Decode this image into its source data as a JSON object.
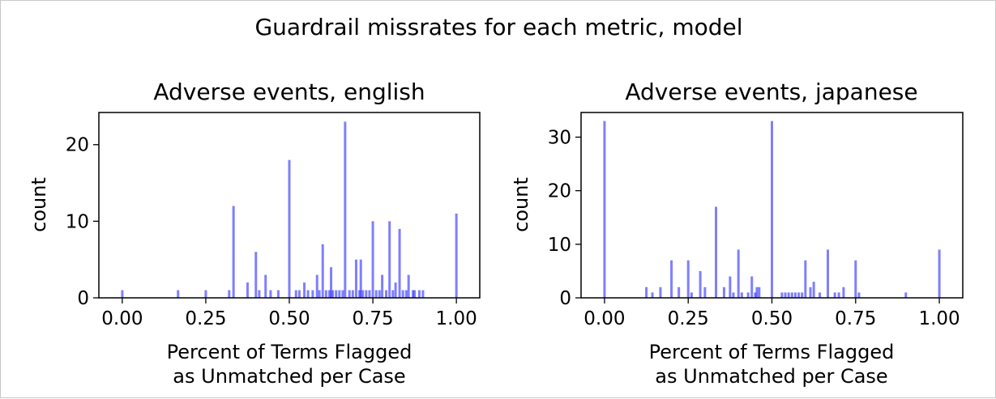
{
  "figure_title": "Guardrail missrates for each metric, model",
  "chart_data": [
    {
      "type": "bar",
      "title": "Adverse events, english",
      "xlabel_line1": "Percent of Terms Flagged",
      "xlabel_line2": "as Unmatched per Case",
      "ylabel": "count",
      "xlim": [
        -0.07,
        1.07
      ],
      "ylim": [
        0,
        24.2
      ],
      "xticks": [
        "0.00",
        "0.25",
        "0.50",
        "0.75",
        "1.00"
      ],
      "xtick_values": [
        0,
        0.25,
        0.5,
        0.75,
        1.0
      ],
      "yticks": [
        "0",
        "10",
        "20"
      ],
      "ytick_values": [
        0,
        10,
        20
      ],
      "bar_color": "#0000ff",
      "bar_opacity": 0.5,
      "bin_width": 0.005,
      "x": [
        0.0,
        0.167,
        0.25,
        0.32,
        0.333,
        0.375,
        0.4,
        0.41,
        0.429,
        0.444,
        0.467,
        0.5,
        0.52,
        0.53,
        0.545,
        0.556,
        0.57,
        0.583,
        0.59,
        0.6,
        0.61,
        0.62,
        0.625,
        0.63,
        0.64,
        0.65,
        0.66,
        0.667,
        0.68,
        0.69,
        0.7,
        0.71,
        0.714,
        0.72,
        0.73,
        0.74,
        0.75,
        0.76,
        0.77,
        0.778,
        0.79,
        0.8,
        0.81,
        0.818,
        0.83,
        0.84,
        0.85,
        0.857,
        0.87,
        0.875,
        0.889,
        0.9,
        1.0
      ],
      "values": [
        1,
        1,
        1,
        1,
        12,
        2,
        6,
        1,
        3,
        1,
        1,
        18,
        1,
        1,
        2,
        1,
        1,
        3,
        1,
        7,
        1,
        1,
        4,
        1,
        1,
        1,
        1,
        23,
        1,
        1,
        5,
        1,
        5,
        1,
        1,
        1,
        10,
        1,
        1,
        3,
        1,
        10,
        1,
        2,
        9,
        1,
        1,
        3,
        1,
        1,
        1,
        1,
        11
      ]
    },
    {
      "type": "bar",
      "title": "Adverse events, japanese",
      "xlabel_line1": "Percent of Terms Flagged",
      "xlabel_line2": "as Unmatched per Case",
      "ylabel": "count",
      "xlim": [
        -0.07,
        1.07
      ],
      "ylim": [
        0,
        34.6
      ],
      "xticks": [
        "0.00",
        "0.25",
        "0.50",
        "0.75",
        "1.00"
      ],
      "xtick_values": [
        0,
        0.25,
        0.5,
        0.75,
        1.0
      ],
      "yticks": [
        "0",
        "10",
        "20",
        "30"
      ],
      "ytick_values": [
        0,
        10,
        20,
        30
      ],
      "bar_color": "#0000ff",
      "bar_opacity": 0.5,
      "bin_width": 0.005,
      "x": [
        0.0,
        0.125,
        0.143,
        0.167,
        0.2,
        0.222,
        0.25,
        0.26,
        0.286,
        0.3,
        0.333,
        0.357,
        0.375,
        0.385,
        0.4,
        0.41,
        0.429,
        0.44,
        0.45,
        0.455,
        0.462,
        0.5,
        0.53,
        0.54,
        0.55,
        0.56,
        0.57,
        0.58,
        0.59,
        0.6,
        0.615,
        0.625,
        0.643,
        0.667,
        0.688,
        0.7,
        0.714,
        0.75,
        0.76,
        0.9,
        1.0
      ],
      "values": [
        33,
        2,
        1,
        2,
        7,
        2,
        7,
        1,
        5,
        2,
        17,
        2,
        4,
        1,
        9,
        1,
        1,
        4,
        1,
        2,
        2,
        33,
        1,
        1,
        1,
        1,
        1,
        1,
        1,
        7,
        2,
        3,
        1,
        9,
        1,
        1,
        2,
        7,
        1,
        1,
        9
      ]
    }
  ]
}
